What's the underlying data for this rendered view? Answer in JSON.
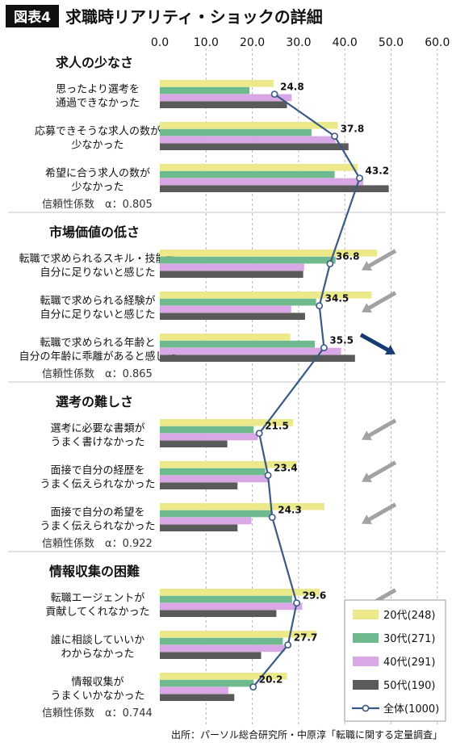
{
  "header": {
    "figure_tag": "図表4",
    "title": "求職時リアリティ・ショックの詳細"
  },
  "colors": {
    "20s": "#ece98a",
    "30s": "#6fb98f",
    "40s": "#d9a6e6",
    "50s": "#5a5a5a",
    "overall_line": "#3a5a86",
    "arrow_gray": "#a2a2a2",
    "arrow_navy": "#173a72"
  },
  "chart_data": {
    "type": "bar",
    "orientation": "horizontal",
    "xlim": [
      0,
      60
    ],
    "x_ticks": [
      "0.0",
      "10.0",
      "20.0",
      "30.0",
      "40.0",
      "50.0",
      "60.0"
    ],
    "grid": "vertical dashed",
    "legend_position": "bottom-right",
    "legend": [
      {
        "key": "20s",
        "label": "20代(248)"
      },
      {
        "key": "30s",
        "label": "30代(271)"
      },
      {
        "key": "40s",
        "label": "40代(291)"
      },
      {
        "key": "50s",
        "label": "50代(190)"
      },
      {
        "key": "overall",
        "label": "全体(1000)"
      }
    ],
    "groups": [
      {
        "title": "求人の少なさ",
        "reliability": "信頼性係数　α：0.805",
        "items": [
          {
            "label": [
              "思ったより選考を",
              "通過できなかった"
            ],
            "values": [
              24.6,
              19.4,
              28.5,
              27.5
            ],
            "overall": 24.8,
            "arrow": ""
          },
          {
            "label": [
              "応募できそうな求人の数が",
              "少なかった"
            ],
            "values": [
              38.5,
              32.8,
              38.0,
              40.8
            ],
            "overall": 37.8,
            "arrow": ""
          },
          {
            "label": [
              "希望に合う求人の数が",
              "少なかった"
            ],
            "values": [
              42.8,
              37.8,
              44.0,
              49.5
            ],
            "overall": 43.2,
            "arrow": ""
          }
        ]
      },
      {
        "title": "市場価値の低さ",
        "reliability": "信頼性係数　α：0.865",
        "items": [
          {
            "label": [
              "転職で求められるスキル・技能が",
              "自分に足りないと感じた"
            ],
            "values": [
              47.0,
              38.0,
              31.2,
              31.0
            ],
            "overall": 36.8,
            "arrow": "gray"
          },
          {
            "label": [
              "転職で求められる経験が",
              "自分に足りないと感じた"
            ],
            "values": [
              45.8,
              33.8,
              28.4,
              31.4
            ],
            "overall": 34.5,
            "arrow": "gray"
          },
          {
            "label": [
              "転職で求められる年齢と",
              "自分の年齢に乖離があると感じた"
            ],
            "values": [
              28.2,
              33.5,
              39.2,
              42.2
            ],
            "overall": 35.5,
            "arrow": "navy"
          }
        ]
      },
      {
        "title": "選考の難しさ",
        "reliability": "信頼性係数　α：0.922",
        "items": [
          {
            "label": [
              "選考に必要な書類が",
              "うまく書けなかった"
            ],
            "values": [
              28.8,
              20.3,
              21.2,
              14.6
            ],
            "overall": 21.5,
            "arrow": "gray"
          },
          {
            "label": [
              "面接で自分の経歴を",
              "うまく伝えられなかった"
            ],
            "values": [
              29.6,
              22.8,
              23.6,
              16.8
            ],
            "overall": 23.4,
            "arrow": "gray"
          },
          {
            "label": [
              "面接で自分の希望を",
              "うまく伝えられなかった"
            ],
            "values": [
              35.6,
              24.2,
              19.8,
              16.8
            ],
            "overall": 24.3,
            "arrow": "gray"
          }
        ]
      },
      {
        "title": "情報収集の困難",
        "reliability": "信頼性係数　α：0.744",
        "items": [
          {
            "label": [
              "転職エージェントが",
              "貢献してくれなかった"
            ],
            "values": [
              34.6,
              28.6,
              30.8,
              25.2
            ],
            "overall": 29.6,
            "arrow": "gray"
          },
          {
            "label": [
              "誰に相談していいか",
              "わからなかった"
            ],
            "values": [
              33.8,
              26.6,
              27.0,
              21.9
            ],
            "overall": 27.7,
            "arrow": "gray"
          },
          {
            "label": [
              "情報収集が",
              "うまくいかなかった"
            ],
            "values": [
              27.5,
              20.3,
              14.8,
              16.1
            ],
            "overall": 20.2,
            "arrow": "gray"
          }
        ]
      }
    ],
    "source": "出所：パーソル総合研究所・中原淳「転職に関する定量調査」"
  }
}
